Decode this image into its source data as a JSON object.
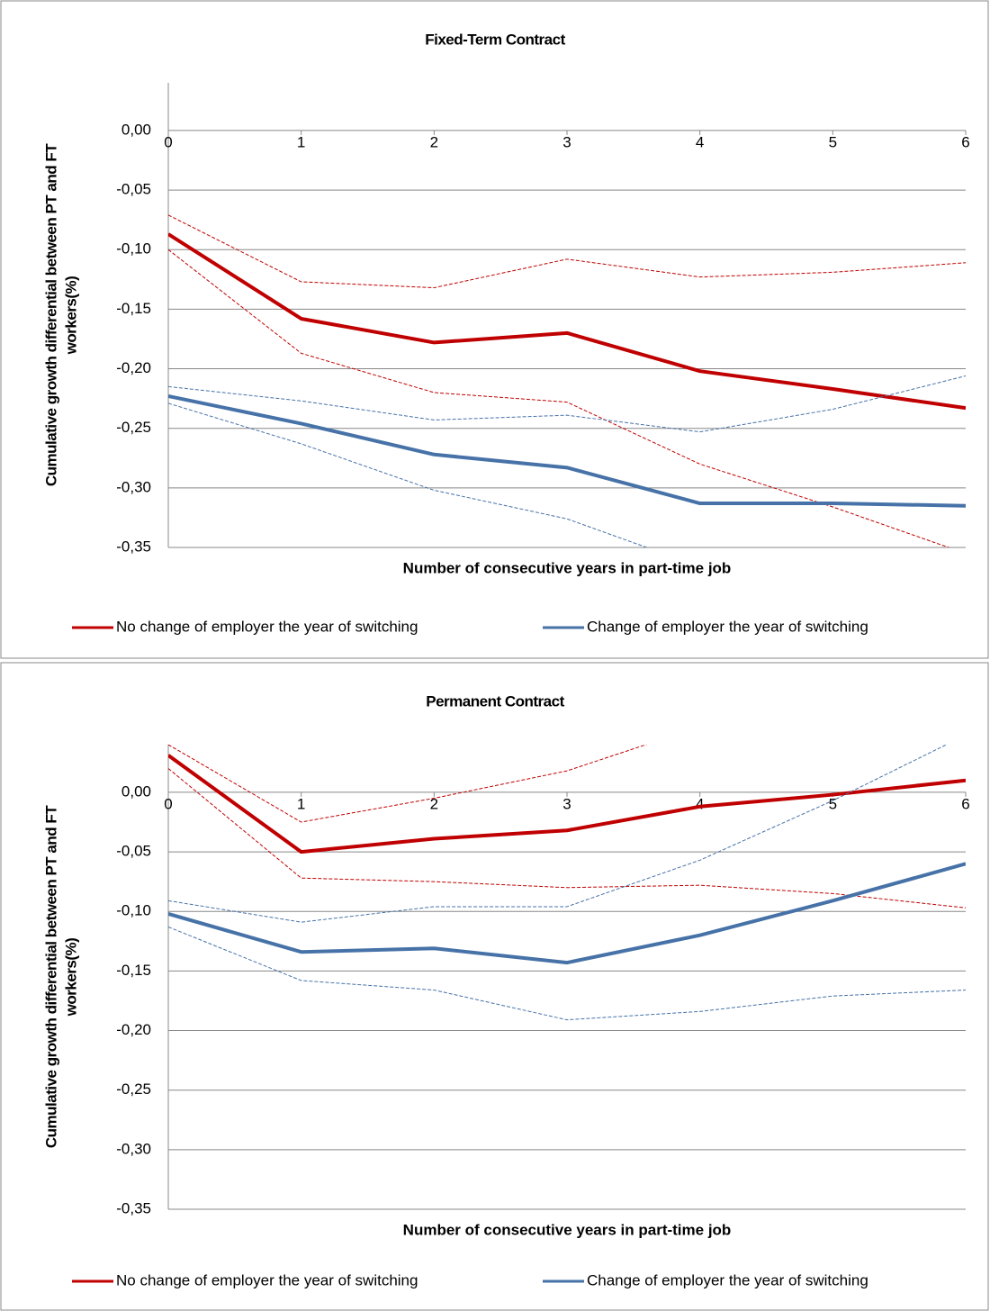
{
  "chart_data": [
    {
      "type": "line",
      "title": "Fixed-Term Contract",
      "x_label": "Number of consecutive years in part-time job",
      "y_label": [
        "Cumulative growth differential between PT and FT",
        "workers(%)"
      ],
      "x": [
        0,
        1,
        2,
        3,
        4,
        5,
        6
      ],
      "xlim": [
        0,
        6
      ],
      "xticks": [
        0,
        1,
        2,
        3,
        4,
        5,
        6
      ],
      "ylim": [
        -0.35,
        0.04
      ],
      "yticks": [
        {
          "value": 0,
          "label": "0,00"
        },
        {
          "value": -0.05,
          "label": "-0,05"
        },
        {
          "value": -0.1,
          "label": "-0,10"
        },
        {
          "value": -0.15,
          "label": "-0,15"
        },
        {
          "value": -0.2,
          "label": "-0,20"
        },
        {
          "value": -0.25,
          "label": "-0,25"
        },
        {
          "value": -0.3,
          "label": "-0,30"
        },
        {
          "value": -0.35,
          "label": "-0,35"
        }
      ],
      "grid": true,
      "series": [
        {
          "name": "No change of employer the year of switching",
          "color": "#c00000",
          "values": [
            -0.087,
            -0.158,
            -0.178,
            -0.17,
            -0.202,
            -0.217,
            -0.233
          ]
        },
        {
          "color": "#c00000",
          "dashed": true,
          "values": [
            -0.071,
            -0.127,
            -0.132,
            -0.108,
            -0.123,
            -0.119,
            -0.111
          ]
        },
        {
          "color": "#c00000",
          "dashed": true,
          "values": [
            -0.1,
            -0.187,
            -0.22,
            -0.228,
            -0.28,
            -0.316,
            -0.355
          ]
        },
        {
          "name": "Change of employer the year of switching",
          "color": "#4672a8",
          "values": [
            -0.223,
            -0.246,
            -0.272,
            -0.283,
            -0.313,
            -0.313,
            -0.315
          ]
        },
        {
          "color": "#4672a8",
          "dashed": true,
          "values": [
            -0.215,
            -0.227,
            -0.243,
            -0.239,
            -0.253,
            -0.234,
            -0.206
          ]
        },
        {
          "color": "#4672a8",
          "dashed": true,
          "values": [
            -0.229,
            -0.263,
            -0.302,
            -0.326,
            -0.366,
            null,
            null
          ]
        }
      ]
    },
    {
      "type": "line",
      "title": "Permanent Contract",
      "x_label": "Number of consecutive years in part-time job",
      "y_label": [
        "Cumulative growth differential between PT and FT",
        "workers(%)"
      ],
      "x": [
        0,
        1,
        2,
        3,
        4,
        5,
        6
      ],
      "xlim": [
        0,
        6
      ],
      "xticks": [
        0,
        1,
        2,
        3,
        4,
        5,
        6
      ],
      "ylim": [
        -0.35,
        0.04
      ],
      "yticks": [
        {
          "value": 0,
          "label": "0,00"
        },
        {
          "value": -0.05,
          "label": "-0,05"
        },
        {
          "value": -0.1,
          "label": "-0,10"
        },
        {
          "value": -0.15,
          "label": "-0,15"
        },
        {
          "value": -0.2,
          "label": "-0,20"
        },
        {
          "value": -0.25,
          "label": "-0,25"
        },
        {
          "value": -0.3,
          "label": "-0,30"
        },
        {
          "value": -0.35,
          "label": "-0,35"
        }
      ],
      "grid": true,
      "series": [
        {
          "name": "No change of employer the year of switching",
          "color": "#c00000",
          "values": [
            0.031,
            -0.05,
            -0.039,
            -0.032,
            -0.012,
            -0.002,
            0.01
          ]
        },
        {
          "color": "#c00000",
          "dashed": true,
          "values": [
            0.04,
            -0.025,
            -0.005,
            0.018,
            0.055,
            null,
            null
          ]
        },
        {
          "color": "#c00000",
          "dashed": true,
          "values": [
            0.02,
            -0.072,
            -0.075,
            -0.08,
            -0.078,
            -0.085,
            -0.097
          ]
        },
        {
          "name": "Change of employer the year of switching",
          "color": "#4672a8",
          "values": [
            -0.102,
            -0.134,
            -0.131,
            -0.143,
            -0.12,
            -0.091,
            -0.06
          ]
        },
        {
          "color": "#4672a8",
          "dashed": true,
          "values": [
            -0.091,
            -0.109,
            -0.096,
            -0.096,
            -0.057,
            -0.007,
            0.048
          ]
        },
        {
          "color": "#4672a8",
          "dashed": true,
          "values": [
            -0.113,
            -0.158,
            -0.166,
            -0.191,
            -0.184,
            -0.171,
            -0.166
          ]
        }
      ]
    }
  ]
}
